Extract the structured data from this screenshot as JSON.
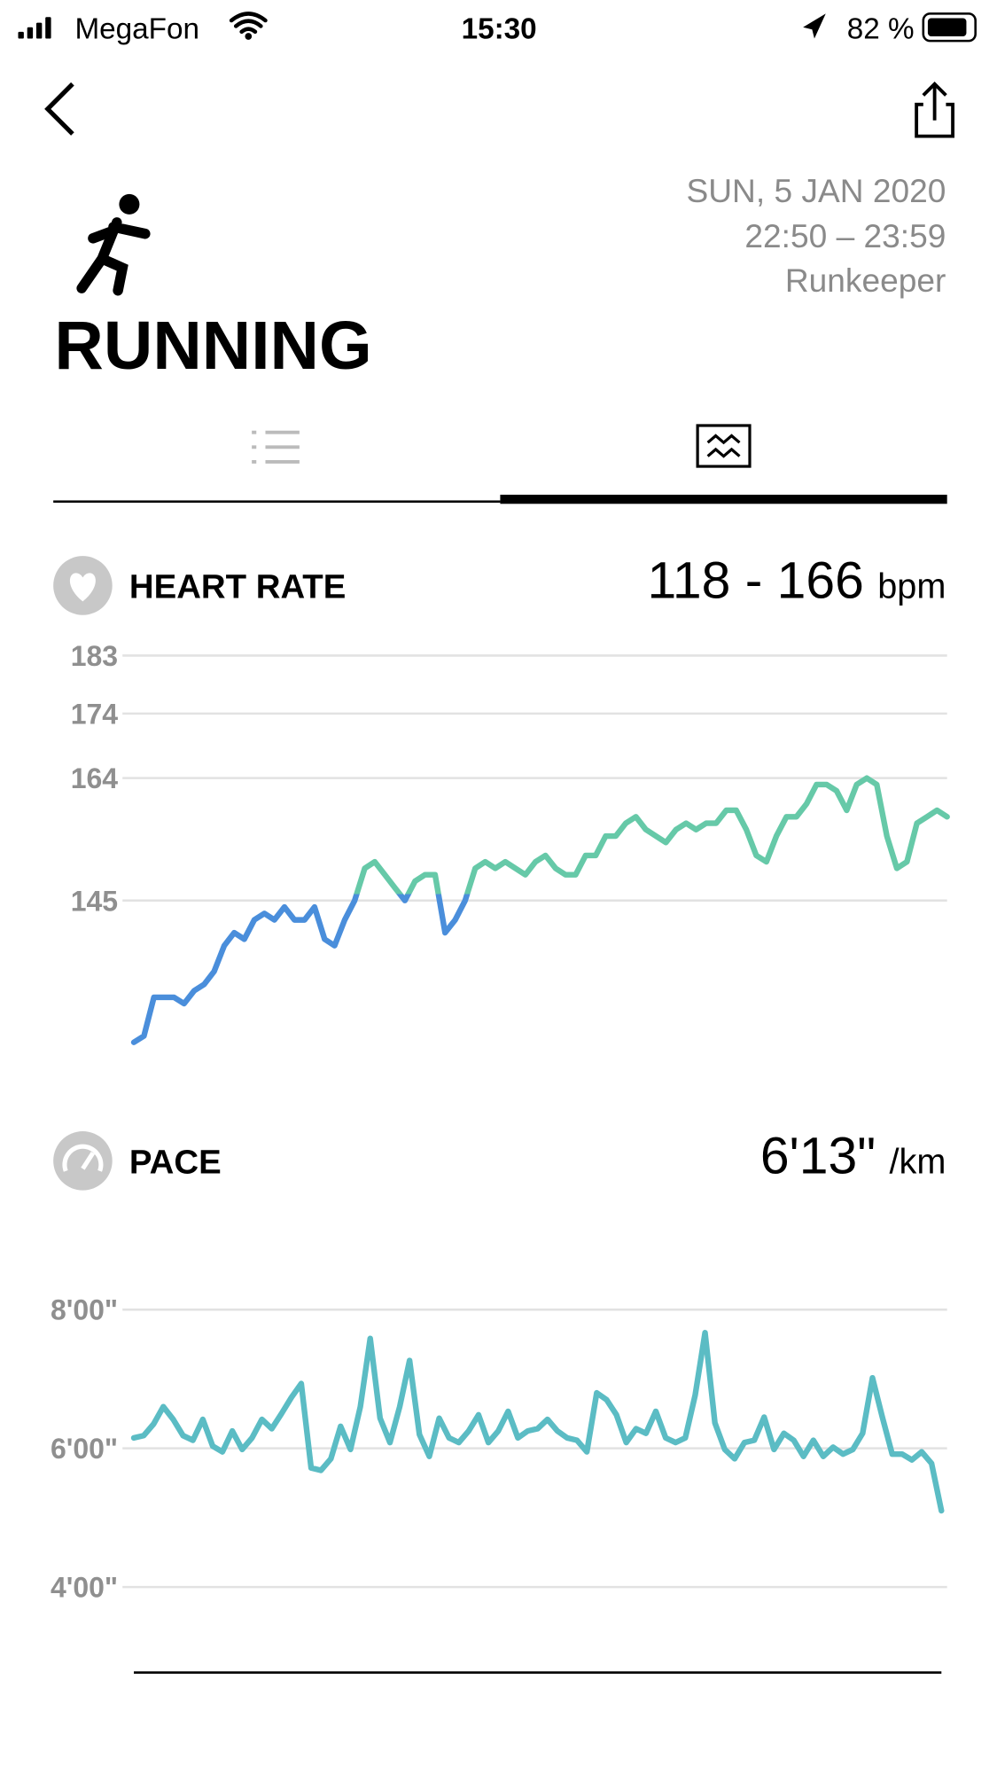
{
  "status_bar": {
    "carrier": "MegaFon",
    "time": "15:30",
    "battery": "82 %"
  },
  "header": {
    "date": "SUN, 5 JAN 2020",
    "time_range": "22:50 – 23:59",
    "source": "Runkeeper",
    "activity": "RUNNING"
  },
  "chart_data": [
    {
      "type": "line",
      "title": "HEART RATE",
      "summary": "118 - 166",
      "unit": "bpm",
      "ylim": [
        121,
        187
      ],
      "yticks": [
        183,
        174,
        164,
        145
      ],
      "grid": true,
      "color": "#66c9a8",
      "low_color": "#4a8edb",
      "color_threshold": 146,
      "values": [
        123,
        124,
        130,
        130,
        130,
        129,
        131,
        132,
        134,
        138,
        140,
        139,
        142,
        143,
        142,
        144,
        142,
        142,
        144,
        139,
        138,
        142,
        145,
        150,
        151,
        149,
        147,
        145,
        148,
        149,
        149,
        140,
        142,
        145,
        150,
        151,
        150,
        151,
        150,
        149,
        151,
        152,
        150,
        149,
        149,
        152,
        152,
        155,
        155,
        157,
        158,
        156,
        155,
        154,
        156,
        157,
        156,
        157,
        157,
        159,
        159,
        156,
        152,
        151,
        155,
        158,
        158,
        160,
        163,
        163,
        162,
        159,
        163,
        164,
        163,
        155,
        150,
        151,
        157,
        158,
        159,
        158
      ]
    },
    {
      "type": "line",
      "title": "PACE",
      "summary": "6'13\"",
      "unit": "/km",
      "ylim": [
        170,
        540
      ],
      "yticks": [
        {
          "value": 480,
          "label": "8'00\""
        },
        {
          "value": 360,
          "label": "6'00\""
        },
        {
          "value": 240,
          "label": "4'00\""
        }
      ],
      "grid": true,
      "color": "#5bbcc4",
      "values": [
        369,
        371,
        381,
        396,
        385,
        371,
        367,
        385,
        362,
        357,
        375,
        359,
        369,
        385,
        377,
        390,
        404,
        416,
        343,
        341,
        351,
        379,
        359,
        396,
        455,
        386,
        365,
        396,
        436,
        372,
        353,
        386,
        369,
        365,
        375,
        389,
        365,
        375,
        392,
        369,
        375,
        377,
        385,
        375,
        369,
        367,
        357,
        408,
        402,
        389,
        365,
        377,
        373,
        392,
        369,
        365,
        369,
        406,
        460,
        382,
        359,
        351,
        365,
        367,
        387,
        359,
        373,
        367,
        353,
        367,
        353,
        361,
        355,
        359,
        373,
        421,
        387,
        355,
        355,
        350,
        357,
        347,
        306
      ]
    }
  ]
}
